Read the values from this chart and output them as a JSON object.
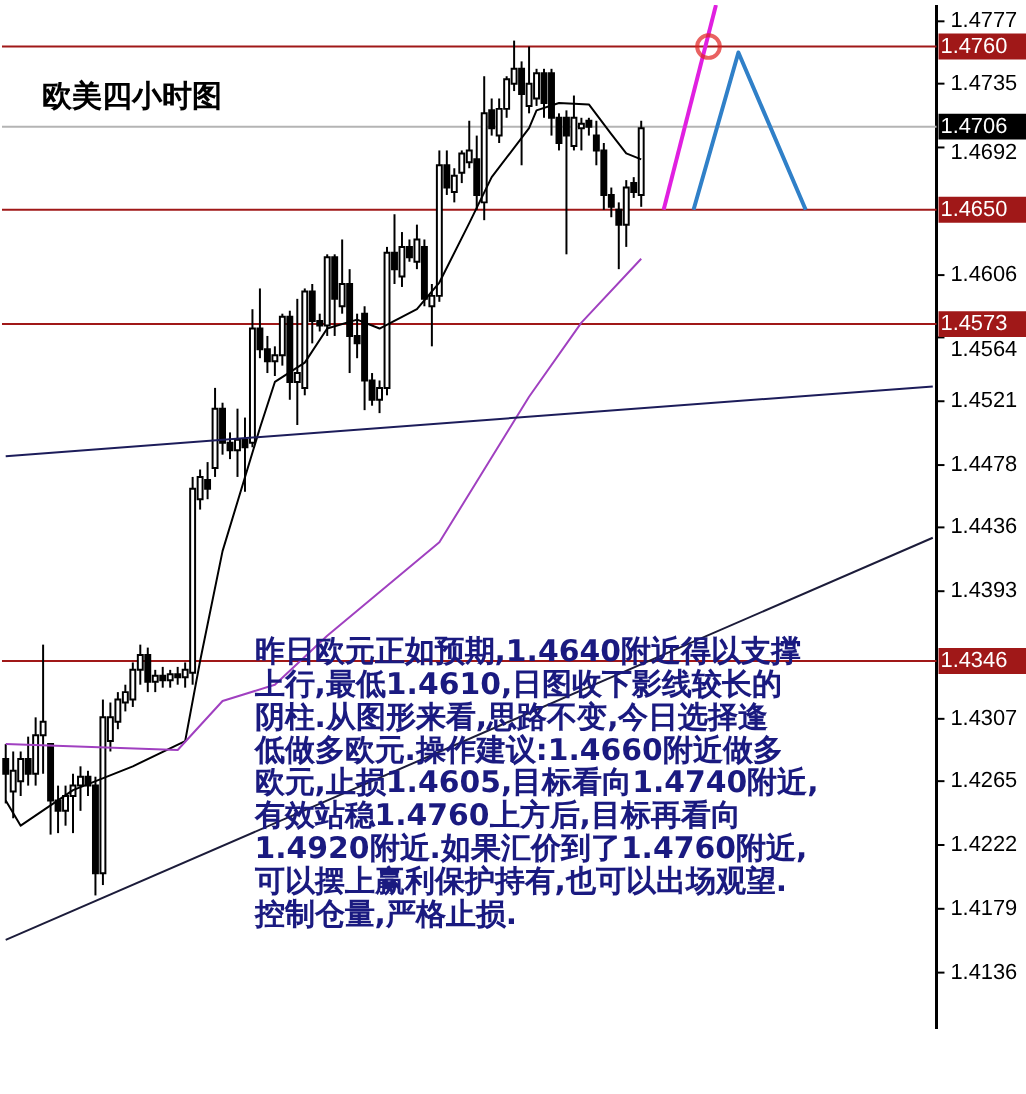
{
  "chart_data": {
    "type": "candlestick",
    "title": "欧美四小时图",
    "categories": [
      null,
      null,
      null,
      null,
      null,
      null,
      null,
      null,
      null,
      null,
      null,
      null,
      null,
      null,
      null,
      null,
      null,
      null,
      null,
      null,
      null,
      null,
      null,
      null,
      null,
      null,
      null,
      null,
      null,
      null,
      null,
      null,
      null,
      null,
      null,
      null,
      null,
      null,
      null,
      null,
      null,
      null,
      null,
      null,
      null,
      null,
      null,
      null,
      null,
      null,
      null,
      null,
      null,
      null,
      null,
      null,
      null,
      null,
      null,
      null,
      null,
      null,
      null,
      null,
      null,
      null,
      null,
      null,
      null,
      null,
      null,
      null,
      null,
      null,
      null,
      null,
      null,
      null,
      null,
      null,
      null,
      null,
      null,
      null,
      null,
      null,
      null,
      null,
      null,
      null,
      null,
      null,
      null,
      null,
      null,
      null,
      null,
      null,
      null,
      null,
      null,
      null,
      null,
      null,
      null,
      null,
      null,
      null,
      null,
      null,
      null,
      null,
      null,
      null,
      null,
      null,
      null,
      null,
      null,
      null,
      null,
      null,
      null,
      null,
      null
    ],
    "ohlc": [
      [
        1.428,
        1.429,
        1.425,
        1.427
      ],
      [
        1.4258,
        1.4285,
        1.424,
        1.4272
      ],
      [
        1.4265,
        1.4285,
        1.4255,
        1.428
      ],
      [
        1.428,
        1.4295,
        1.4262,
        1.427
      ],
      [
        1.427,
        1.4308,
        1.4262,
        1.4296
      ],
      [
        1.4296,
        1.4357,
        1.427,
        1.4305
      ],
      [
        1.429,
        1.429,
        1.4229,
        1.4252
      ],
      [
        1.4252,
        1.4262,
        1.423,
        1.4245
      ],
      [
        1.4245,
        1.4262,
        1.4235,
        1.4255
      ],
      [
        1.4255,
        1.427,
        1.423,
        1.4262
      ],
      [
        1.4262,
        1.4275,
        1.4245,
        1.4268
      ],
      [
        1.4268,
        1.4272,
        1.4255,
        1.4262
      ],
      [
        1.4262,
        1.4268,
        1.4188,
        1.4203
      ],
      [
        1.4203,
        1.432,
        1.4195,
        1.4308
      ],
      [
        1.4292,
        1.4318,
        1.4285,
        1.4308
      ],
      [
        1.4305,
        1.4325,
        1.43,
        1.432
      ],
      [
        1.4318,
        1.433,
        1.4312,
        1.4325
      ],
      [
        1.432,
        1.4345,
        1.4315,
        1.434
      ],
      [
        1.434,
        1.4357,
        1.433,
        1.435
      ],
      [
        1.435,
        1.4355,
        1.4325,
        1.4332
      ],
      [
        1.4332,
        1.434,
        1.4325,
        1.4336
      ],
      [
        1.4336,
        1.4342,
        1.4328,
        1.4333
      ],
      [
        1.4333,
        1.434,
        1.4328,
        1.4337
      ],
      [
        1.4337,
        1.4342,
        1.433,
        1.4335
      ],
      [
        1.4335,
        1.4345,
        1.4328,
        1.434
      ],
      [
        1.4338,
        1.447,
        1.433,
        1.4462
      ],
      [
        1.4455,
        1.4475,
        1.4448,
        1.447
      ],
      [
        1.4468,
        1.448,
        1.4455,
        1.4462
      ],
      [
        1.4476,
        1.453,
        1.447,
        1.4516
      ],
      [
        1.4516,
        1.452,
        1.4485,
        1.4493
      ],
      [
        1.4493,
        1.45,
        1.4482,
        1.4488
      ],
      [
        1.4488,
        1.4516,
        1.447,
        1.4495
      ],
      [
        1.4495,
        1.451,
        1.446,
        1.449
      ],
      [
        1.4493,
        1.4583,
        1.449,
        1.457
      ],
      [
        1.457,
        1.4597,
        1.455,
        1.4556
      ],
      [
        1.4556,
        1.4565,
        1.454,
        1.4548
      ],
      [
        1.4548,
        1.4558,
        1.4538,
        1.4552
      ],
      [
        1.4552,
        1.458,
        1.4545,
        1.4578
      ],
      [
        1.4578,
        1.4582,
        1.4522,
        1.4534
      ],
      [
        1.4534,
        1.459,
        1.4505,
        1.454
      ],
      [
        1.453,
        1.4597,
        1.4525,
        1.4595
      ],
      [
        1.4595,
        1.46,
        1.456,
        1.4575
      ],
      [
        1.4575,
        1.458,
        1.4568,
        1.4572
      ],
      [
        1.4572,
        1.462,
        1.4565,
        1.4618
      ],
      [
        1.4618,
        1.462,
        1.4565,
        1.459
      ],
      [
        1.4585,
        1.463,
        1.458,
        1.46
      ],
      [
        1.46,
        1.461,
        1.454,
        1.4565
      ],
      [
        1.4565,
        1.458,
        1.455,
        1.456
      ],
      [
        1.458,
        1.4585,
        1.4515,
        1.4535
      ],
      [
        1.4535,
        1.454,
        1.4518,
        1.4522
      ],
      [
        1.4522,
        1.4535,
        1.4513,
        1.453
      ],
      [
        1.453,
        1.4625,
        1.4525,
        1.4621
      ],
      [
        1.4621,
        1.4647,
        1.46,
        1.461
      ],
      [
        1.4605,
        1.4635,
        1.4598,
        1.4625
      ],
      [
        1.4625,
        1.463,
        1.4615,
        1.4618
      ],
      [
        1.4615,
        1.464,
        1.461,
        1.463
      ],
      [
        1.4625,
        1.463,
        1.4585,
        1.459
      ],
      [
        1.4585,
        1.46,
        1.4558,
        1.4592
      ],
      [
        1.4592,
        1.469,
        1.4588,
        1.468
      ],
      [
        1.468,
        1.469,
        1.466,
        1.4665
      ],
      [
        1.4662,
        1.4678,
        1.4655,
        1.4673
      ],
      [
        1.4675,
        1.469,
        1.4668,
        1.4688
      ],
      [
        1.4682,
        1.471,
        1.4678,
        1.469
      ],
      [
        1.4684,
        1.47,
        1.465,
        1.466
      ],
      [
        1.4655,
        1.474,
        1.4643,
        1.4715
      ],
      [
        1.4717,
        1.4725,
        1.47,
        1.4705
      ],
      [
        1.47,
        1.4725,
        1.4695,
        1.4718
      ],
      [
        1.4718,
        1.474,
        1.4712,
        1.4738
      ],
      [
        1.4735,
        1.4764,
        1.473,
        1.4745
      ],
      [
        1.4745,
        1.475,
        1.468,
        1.4728
      ],
      [
        1.472,
        1.476,
        1.4715,
        1.4735
      ],
      [
        1.4725,
        1.4745,
        1.472,
        1.4742
      ],
      [
        1.4742,
        1.4745,
        1.4712,
        1.4722
      ],
      [
        1.4742,
        1.4745,
        1.47,
        1.4712
      ],
      [
        1.4712,
        1.4715,
        1.469,
        1.4695
      ],
      [
        1.4712,
        1.4717,
        1.462,
        1.47
      ],
      [
        1.4693,
        1.4727,
        1.469,
        1.4712
      ],
      [
        1.4705,
        1.4712,
        1.469,
        1.4708
      ],
      [
        1.471,
        1.4712,
        1.47,
        1.4706
      ],
      [
        1.47,
        1.471,
        1.468,
        1.469
      ],
      [
        1.469,
        1.4695,
        1.465,
        1.466
      ],
      [
        1.466,
        1.4665,
        1.4645,
        1.4652
      ],
      [
        1.465,
        1.4655,
        1.461,
        1.464
      ],
      [
        1.464,
        1.467,
        1.4625,
        1.4665
      ],
      [
        1.4668,
        1.4672,
        1.4658,
        1.4662
      ],
      [
        1.466,
        1.471,
        1.4652,
        1.4705
      ],
      null,
      null,
      null,
      null,
      null,
      null,
      null,
      null,
      null,
      null,
      null,
      null,
      null,
      null,
      null,
      null,
      null,
      null,
      null,
      null,
      null,
      null,
      null,
      null,
      null,
      null,
      null,
      null,
      null,
      null,
      null,
      null,
      null,
      null,
      null,
      null,
      null,
      null,
      null
    ],
    "ylim": [
      1.4098,
      1.4788
    ],
    "yticks": [
      1.4777,
      1.4735,
      1.4692,
      1.4606,
      1.4564,
      1.4521,
      1.4478,
      1.4436,
      1.4393,
      1.4307,
      1.4265,
      1.4222,
      1.4179,
      1.4136
    ],
    "tick_labels": "y",
    "grid": false,
    "ref_lines": [
      {
        "axis": "y",
        "value": 1.476,
        "label": "1.4760",
        "color": "#a01818"
      },
      {
        "axis": "y",
        "value": 1.4706,
        "label": "1.4706",
        "color": "#b4b4b4"
      },
      {
        "axis": "y",
        "value": 1.465,
        "label": "1.4650",
        "color": "#a01818"
      },
      {
        "axis": "y",
        "value": 1.4573,
        "label": "1.4573",
        "color": "#a01818"
      },
      {
        "axis": "y",
        "value": 1.4346,
        "label": "1.4346",
        "color": "#a01818"
      }
    ],
    "series": [
      {
        "type": "line",
        "color": "#000000",
        "values": [
          1.4252,
          null,
          1.4235,
          null,
          null,
          null,
          null,
          null,
          null,
          1.4259,
          null,
          null,
          null,
          null,
          null,
          null,
          null,
          1.4275,
          null,
          null,
          null,
          null,
          null,
          null,
          1.4292,
          null,
          1.4346,
          null,
          null,
          1.442,
          null,
          null,
          null,
          null,
          1.4503,
          null,
          1.4534,
          null,
          null,
          null,
          1.4547,
          null,
          null,
          1.457,
          null,
          null,
          null,
          1.4576,
          null,
          null,
          1.457,
          null,
          null,
          null,
          null,
          1.4583,
          null,
          null,
          1.4601,
          null,
          null,
          null,
          1.4641,
          null,
          null,
          1.4672,
          null,
          null,
          null,
          null,
          1.4705,
          1.4717,
          null,
          null,
          1.4722,
          null,
          null,
          null,
          1.4721,
          null,
          null,
          1.4701,
          null,
          1.4688,
          null,
          1.4684,
          null,
          null,
          null,
          null,
          null,
          null,
          null,
          null,
          null,
          null,
          null,
          null,
          null,
          null,
          null,
          null,
          null,
          null,
          null,
          null,
          null,
          null,
          null,
          null,
          null,
          null,
          null,
          null,
          null,
          null,
          null,
          null,
          null,
          null,
          null,
          null,
          null,
          null,
          null
        ]
      },
      {
        "type": "line",
        "color": "#a040c0",
        "values": [
          1.429,
          null,
          null,
          null,
          null,
          null,
          null,
          null,
          null,
          null,
          null,
          null,
          null,
          null,
          null,
          null,
          null,
          null,
          null,
          null,
          null,
          null,
          null,
          1.4286,
          null,
          null,
          null,
          null,
          null,
          1.4319,
          null,
          null,
          null,
          null,
          null,
          null,
          1.433,
          null,
          null,
          null,
          null,
          null,
          null,
          1.4363,
          null,
          null,
          null,
          null,
          null,
          null,
          null,
          null,
          null,
          null,
          null,
          null,
          null,
          null,
          1.4426,
          null,
          null,
          null,
          null,
          null,
          null,
          null,
          null,
          null,
          null,
          null,
          1.4524,
          null,
          null,
          null,
          null,
          null,
          null,
          1.4574,
          null,
          null,
          null,
          null,
          null,
          null,
          null,
          1.4617,
          null,
          null,
          null,
          null,
          null,
          null,
          null,
          null,
          null,
          null,
          null,
          null,
          null,
          null,
          null,
          null,
          null,
          null,
          null,
          null,
          null,
          null,
          null,
          null,
          null,
          null,
          null,
          null,
          null,
          null,
          null,
          null,
          null,
          null,
          null,
          null,
          null,
          null,
          null
        ]
      },
      {
        "type": "line",
        "color": "#1c1c5a",
        "values": [
          1.4484,
          null,
          null,
          null,
          null,
          null,
          null,
          null,
          null,
          null,
          null,
          null,
          null,
          null,
          null,
          null,
          null,
          null,
          null,
          null,
          null,
          null,
          null,
          null,
          null,
          null,
          null,
          null,
          null,
          null,
          null,
          null,
          null,
          null,
          null,
          null,
          null,
          null,
          null,
          null,
          null,
          null,
          null,
          null,
          null,
          null,
          null,
          null,
          null,
          null,
          null,
          null,
          null,
          null,
          null,
          null,
          null,
          null,
          null,
          null,
          null,
          null,
          null,
          null,
          null,
          null,
          null,
          null,
          null,
          null,
          null,
          null,
          null,
          null,
          null,
          null,
          null,
          null,
          null,
          null,
          null,
          null,
          null,
          null,
          null,
          null,
          null,
          null,
          null,
          null,
          null,
          null,
          null,
          null,
          null,
          null,
          null,
          null,
          null,
          null,
          null,
          null,
          null,
          null,
          null,
          null,
          null,
          null,
          null,
          null,
          null,
          null,
          null,
          null,
          null,
          null,
          null,
          null,
          null,
          null,
          null,
          null,
          null,
          null,
          1.4531
        ]
      },
      {
        "type": "line",
        "color": "#1c1c3a",
        "values": [
          1.4158,
          null,
          null,
          null,
          null,
          null,
          null,
          null,
          null,
          null,
          null,
          null,
          null,
          null,
          null,
          null,
          null,
          null,
          null,
          null,
          null,
          null,
          null,
          null,
          null,
          null,
          null,
          null,
          null,
          null,
          null,
          null,
          null,
          null,
          null,
          null,
          null,
          null,
          null,
          null,
          null,
          null,
          null,
          null,
          null,
          null,
          null,
          null,
          null,
          null,
          null,
          null,
          null,
          null,
          null,
          null,
          null,
          null,
          null,
          null,
          null,
          null,
          null,
          null,
          null,
          null,
          null,
          null,
          null,
          null,
          null,
          null,
          null,
          null,
          null,
          null,
          null,
          null,
          null,
          null,
          null,
          null,
          null,
          null,
          null,
          null,
          null,
          null,
          null,
          null,
          null,
          null,
          null,
          null,
          null,
          null,
          null,
          null,
          null,
          null,
          null,
          null,
          null,
          null,
          null,
          null,
          null,
          null,
          null,
          null,
          null,
          null,
          null,
          null,
          null,
          null,
          null,
          null,
          null,
          null,
          null,
          null,
          null,
          null,
          1.4429
        ]
      },
      {
        "type": "line",
        "color": "#e020e0",
        "values": [
          null,
          null,
          null,
          null,
          null,
          null,
          null,
          null,
          null,
          null,
          null,
          null,
          null,
          null,
          null,
          null,
          null,
          null,
          null,
          null,
          null,
          null,
          null,
          null,
          null,
          null,
          null,
          null,
          null,
          null,
          null,
          null,
          null,
          null,
          null,
          null,
          null,
          null,
          null,
          null,
          null,
          null,
          null,
          null,
          null,
          null,
          null,
          null,
          null,
          null,
          null,
          null,
          null,
          null,
          null,
          null,
          null,
          null,
          null,
          null,
          null,
          null,
          null,
          null,
          null,
          null,
          null,
          null,
          null,
          null,
          null,
          null,
          null,
          null,
          null,
          null,
          null,
          null,
          null,
          null,
          null,
          null,
          null,
          null,
          null,
          null,
          null,
          null,
          1.465,
          null,
          null,
          null,
          null,
          null,
          null,
          1.4788,
          null,
          null,
          null,
          null,
          null,
          null,
          null,
          null,
          null,
          null,
          null,
          null,
          null,
          null,
          null,
          null,
          null,
          null,
          null,
          null,
          null,
          null,
          null,
          null,
          null,
          null,
          null,
          null,
          null
        ]
      },
      {
        "type": "line",
        "color": "#3080c8",
        "values": [
          null,
          null,
          null,
          null,
          null,
          null,
          null,
          null,
          null,
          null,
          null,
          null,
          null,
          null,
          null,
          null,
          null,
          null,
          null,
          null,
          null,
          null,
          null,
          null,
          null,
          null,
          null,
          null,
          null,
          null,
          null,
          null,
          null,
          null,
          null,
          null,
          null,
          null,
          null,
          null,
          null,
          null,
          null,
          null,
          null,
          null,
          null,
          null,
          null,
          null,
          null,
          null,
          null,
          null,
          null,
          null,
          null,
          null,
          null,
          null,
          null,
          null,
          null,
          null,
          null,
          null,
          null,
          null,
          null,
          null,
          null,
          null,
          null,
          null,
          null,
          null,
          null,
          null,
          null,
          null,
          null,
          null,
          null,
          null,
          null,
          null,
          null,
          null,
          null,
          null,
          null,
          null,
          1.465,
          null,
          null,
          null,
          null,
          null,
          1.4756,
          null,
          null,
          null,
          null,
          null,
          null,
          null,
          null,
          1.465,
          null,
          null,
          null,
          null,
          null,
          null,
          null,
          null,
          null,
          null,
          null,
          null,
          null,
          null,
          null,
          null,
          null
        ]
      },
      {
        "type": "scatter",
        "marker": "circle",
        "color": "#e02020",
        "values": [
          null,
          null,
          null,
          null,
          null,
          null,
          null,
          null,
          null,
          null,
          null,
          null,
          null,
          null,
          null,
          null,
          null,
          null,
          null,
          null,
          null,
          null,
          null,
          null,
          null,
          null,
          null,
          null,
          null,
          null,
          null,
          null,
          null,
          null,
          null,
          null,
          null,
          null,
          null,
          null,
          null,
          null,
          null,
          null,
          null,
          null,
          null,
          null,
          null,
          null,
          null,
          null,
          null,
          null,
          null,
          null,
          null,
          null,
          null,
          null,
          null,
          null,
          null,
          null,
          null,
          null,
          null,
          null,
          null,
          null,
          null,
          null,
          null,
          null,
          null,
          null,
          null,
          null,
          null,
          null,
          null,
          null,
          null,
          null,
          null,
          null,
          null,
          null,
          null,
          null,
          null,
          null,
          null,
          null,
          1.476,
          null,
          null,
          null,
          null,
          null,
          null,
          null,
          null,
          null,
          null,
          null,
          null,
          null,
          null,
          null,
          null,
          null,
          null,
          null,
          null,
          null,
          null,
          null,
          null,
          null,
          null,
          null,
          null,
          null,
          null
        ]
      }
    ],
    "annotations": [
      "昨日欧元正如预期,1.4640附近得以支撑上行,最低1.4610,日图收下影线较长的阴柱.从图形来看,思路不变,今日选择逢低做多欧元.操作建议:1.4660附近做多欧元,止损1.4605,目标看向1.4740附近,有效站稳1.4760上方后,目标再看向1.4920附近.如果汇价到了1.4760附近,可以摆上赢利保护持有,也可以出场观望.控制仓量,严格止损."
    ]
  }
}
